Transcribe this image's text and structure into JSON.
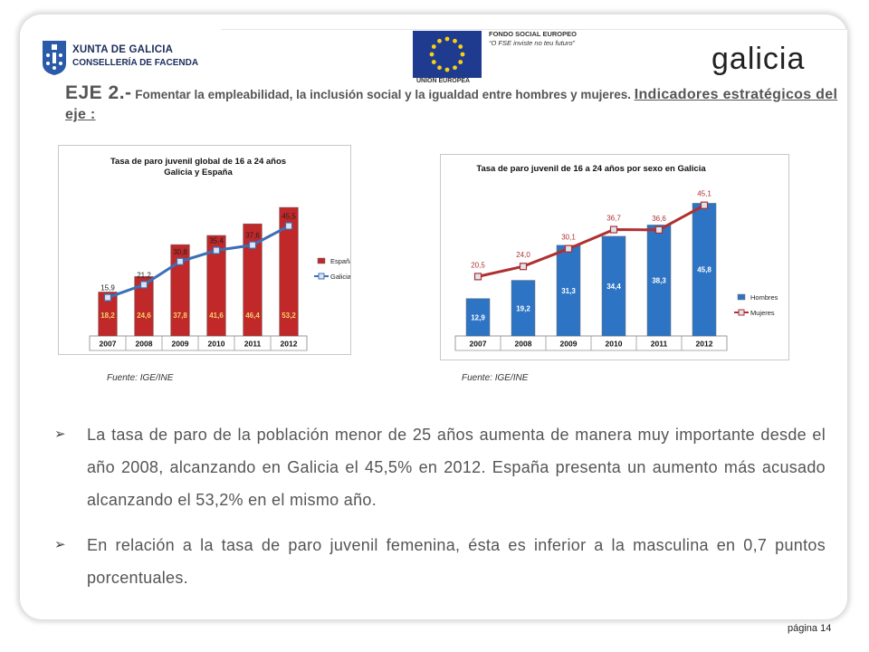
{
  "header": {
    "xunta_name": "XUNTA DE GALICIA",
    "xunta_dept": "CONSELLERÍA DE FACENDA",
    "eu_fund": "FONDO SOCIAL EUROPEO",
    "eu_motto": "“O FSE inviste no teu futuro”",
    "eu_union": "UNIÓN EUROPEA",
    "galicia_logo": "galicia"
  },
  "title": {
    "prefix": "EJE 2.-",
    "text": " Fomentar la empleabilidad, la inclusión social y la igualdad entre hombres y mujeres. ",
    "sub": "Indicadores estratégicos del eje :"
  },
  "colors": {
    "red": "#c0282a",
    "blue": "#2e74c4",
    "line_blue": "#3b70b5",
    "line_red": "#b03030"
  },
  "chart_data": [
    {
      "type": "bar",
      "title": "Tasa de paro juvenil  global de 16 a 24 años",
      "subtitle": "Galicia y España",
      "categories": [
        "2007",
        "2008",
        "2009",
        "2010",
        "2011",
        "2012"
      ],
      "series": [
        {
          "name": "España",
          "kind": "bar",
          "values": [
            18.2,
            24.6,
            37.8,
            41.6,
            46.4,
            53.2
          ],
          "labels": [
            "18,2",
            "24,6",
            "37,8",
            "41,6",
            "46,4",
            "53,2"
          ]
        },
        {
          "name": "Galicia",
          "kind": "line",
          "values": [
            15.9,
            21.2,
            30.8,
            35.4,
            37.6,
            45.5
          ],
          "labels": [
            "15,9",
            "21,2",
            "30,8",
            "35,4",
            "37,6",
            "45,5"
          ]
        }
      ],
      "legend": "right",
      "source": "Fuente: IGE/INE"
    },
    {
      "type": "bar",
      "title": "Tasa de paro juvenil de 16 a 24 años por sexo en Galicia",
      "categories": [
        "2007",
        "2008",
        "2009",
        "2010",
        "2011",
        "2012"
      ],
      "series": [
        {
          "name": "Hombres",
          "kind": "bar",
          "values": [
            12.9,
            19.2,
            31.3,
            34.4,
            38.3,
            45.8
          ],
          "labels": [
            "12,9",
            "19,2",
            "31,3",
            "34,4",
            "38,3",
            "45,8"
          ]
        },
        {
          "name": "Mujeres",
          "kind": "line",
          "values": [
            20.5,
            24.0,
            30.1,
            36.7,
            36.6,
            45.1
          ],
          "labels": [
            "20,5",
            "24,0",
            "30,1",
            "36,7",
            "36,6",
            "45,1"
          ]
        }
      ],
      "legend": "right",
      "source": "Fuente: IGE/INE"
    }
  ],
  "bullets": [
    "La tasa de paro de la población menor de 25 años aumenta de manera muy importante desde el año 2008, alcanzando en Galicia el 45,5% en 2012. España presenta un aumento más acusado alcanzando el 53,2% en el mismo año.",
    "En relación a la tasa de paro juvenil femenina, ésta es inferior a la masculina en 0,7 puntos porcentuales."
  ],
  "bullet_marker": "➢",
  "page_number": "página 14"
}
